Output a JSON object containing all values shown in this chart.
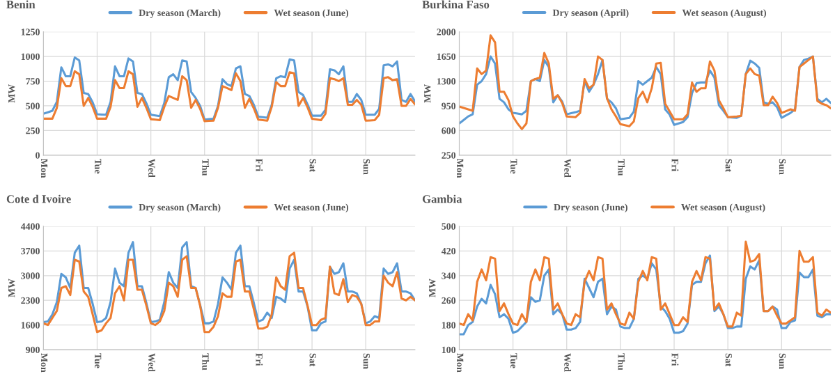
{
  "chart_data": [
    {
      "type": "line",
      "title": "Benin",
      "ylabel": "MW",
      "legend": "top",
      "grid": true,
      "marker": "none",
      "line_style": "solid",
      "categories": [
        "Mon",
        null,
        null,
        null,
        null,
        null,
        null,
        null,
        null,
        null,
        null,
        null,
        "Tue",
        null,
        null,
        null,
        null,
        null,
        null,
        null,
        null,
        null,
        null,
        null,
        "Wed",
        null,
        null,
        null,
        null,
        null,
        null,
        null,
        null,
        null,
        null,
        null,
        "Thu",
        null,
        null,
        null,
        null,
        null,
        null,
        null,
        null,
        null,
        null,
        null,
        "Fri",
        null,
        null,
        null,
        null,
        null,
        null,
        null,
        null,
        null,
        null,
        null,
        "Sat",
        null,
        null,
        null,
        null,
        null,
        null,
        null,
        null,
        null,
        null,
        null,
        "Sun",
        null,
        null,
        null,
        null,
        null,
        null,
        null,
        null,
        null,
        null,
        null
      ],
      "ylim": [
        0,
        1250
      ],
      "yticks": [
        0,
        250,
        500,
        750,
        1000,
        1250
      ],
      "series": [
        {
          "name": "Dry season (March)",
          "color": "#5b9bd5",
          "values": [
            420,
            435,
            450,
            540,
            890,
            800,
            800,
            990,
            960,
            630,
            620,
            535,
            415,
            412,
            410,
            540,
            900,
            800,
            800,
            980,
            950,
            630,
            620,
            525,
            410,
            402,
            395,
            530,
            790,
            820,
            760,
            960,
            950,
            640,
            580,
            500,
            360,
            365,
            370,
            500,
            770,
            720,
            700,
            880,
            900,
            620,
            600,
            510,
            390,
            385,
            380,
            510,
            780,
            800,
            790,
            970,
            960,
            640,
            610,
            515,
            400,
            400,
            400,
            460,
            870,
            860,
            820,
            900,
            540,
            540,
            620,
            560,
            410,
            410,
            410,
            470,
            910,
            920,
            900,
            950,
            560,
            540,
            620,
            545
          ]
        },
        {
          "name": "Wet season (June)",
          "color": "#ed7d31",
          "values": [
            370,
            370,
            370,
            480,
            780,
            700,
            700,
            850,
            820,
            500,
            580,
            490,
            370,
            370,
            370,
            490,
            760,
            680,
            680,
            850,
            820,
            490,
            580,
            480,
            365,
            360,
            355,
            490,
            600,
            580,
            560,
            800,
            760,
            480,
            560,
            470,
            345,
            348,
            350,
            480,
            700,
            680,
            660,
            830,
            750,
            480,
            570,
            475,
            360,
            355,
            350,
            490,
            740,
            700,
            700,
            840,
            830,
            500,
            580,
            485,
            370,
            362,
            355,
            420,
            780,
            770,
            750,
            780,
            510,
            510,
            560,
            510,
            350,
            352,
            355,
            410,
            780,
            790,
            760,
            770,
            500,
            500,
            570,
            515
          ]
        }
      ]
    },
    {
      "type": "line",
      "title": "Burkina Faso",
      "ylabel": "MW",
      "legend": "top",
      "grid": true,
      "marker": "none",
      "line_style": "solid",
      "categories": [
        "Mon",
        null,
        null,
        null,
        null,
        null,
        null,
        null,
        null,
        null,
        null,
        null,
        "Tue",
        null,
        null,
        null,
        null,
        null,
        null,
        null,
        null,
        null,
        null,
        null,
        "Wed",
        null,
        null,
        null,
        null,
        null,
        null,
        null,
        null,
        null,
        null,
        null,
        "Thu",
        null,
        null,
        null,
        null,
        null,
        null,
        null,
        null,
        null,
        null,
        null,
        "Fri",
        null,
        null,
        null,
        null,
        null,
        null,
        null,
        null,
        null,
        null,
        null,
        "Sat",
        null,
        null,
        null,
        null,
        null,
        null,
        null,
        null,
        null,
        null,
        null,
        "Sun",
        null,
        null,
        null,
        null,
        null,
        null,
        null,
        null,
        null,
        null,
        null
      ],
      "ylim": [
        250,
        2000
      ],
      "yticks": [
        250,
        600,
        950,
        1300,
        1650,
        2000
      ],
      "series": [
        {
          "name": "Dry season (April)",
          "color": "#5b9bd5",
          "values": [
            700,
            750,
            800,
            830,
            1250,
            1300,
            1400,
            1650,
            1550,
            1050,
            1000,
            900,
            850,
            840,
            830,
            880,
            1300,
            1330,
            1300,
            1600,
            1500,
            1000,
            1100,
            1010,
            830,
            845,
            860,
            880,
            1300,
            1150,
            1250,
            1400,
            1600,
            1050,
            1000,
            915,
            760,
            770,
            780,
            870,
            1300,
            1250,
            1300,
            1350,
            1500,
            1400,
            900,
            825,
            680,
            700,
            720,
            790,
            1130,
            1270,
            1280,
            1280,
            1450,
            1350,
            960,
            880,
            790,
            785,
            780,
            810,
            1400,
            1590,
            1550,
            1490,
            1000,
            980,
            1000,
            930,
            780,
            815,
            850,
            900,
            1500,
            1600,
            1620,
            1650,
            1050,
            1000,
            1050,
            990
          ]
        },
        {
          "name": "Wet season (August)",
          "color": "#ed7d31",
          "values": [
            940,
            920,
            900,
            880,
            1480,
            1400,
            1450,
            1950,
            1850,
            1150,
            1150,
            1030,
            800,
            700,
            620,
            700,
            1300,
            1330,
            1350,
            1700,
            1550,
            1050,
            1100,
            990,
            800,
            795,
            790,
            850,
            1330,
            1200,
            1250,
            1650,
            1600,
            1060,
            900,
            800,
            690,
            675,
            660,
            730,
            1060,
            1150,
            1000,
            1200,
            1550,
            1560,
            980,
            870,
            760,
            760,
            760,
            830,
            1280,
            1150,
            1200,
            1200,
            1580,
            1450,
            1030,
            915,
            790,
            795,
            800,
            810,
            1400,
            1480,
            1400,
            1380,
            960,
            960,
            1080,
            990,
            850,
            875,
            900,
            880,
            1500,
            1550,
            1600,
            1650,
            1020,
            980,
            960,
            915
          ]
        }
      ]
    },
    {
      "type": "line",
      "title": "Cote d Ivoire",
      "ylabel": "MW",
      "legend": "top",
      "grid": true,
      "marker": "none",
      "line_style": "solid",
      "categories": [
        "Mon",
        null,
        null,
        null,
        null,
        null,
        null,
        null,
        null,
        null,
        null,
        null,
        "Tue",
        null,
        null,
        null,
        null,
        null,
        null,
        null,
        null,
        null,
        null,
        null,
        "Wed",
        null,
        null,
        null,
        null,
        null,
        null,
        null,
        null,
        null,
        null,
        null,
        "Thu",
        null,
        null,
        null,
        null,
        null,
        null,
        null,
        null,
        null,
        null,
        null,
        "Fri",
        null,
        null,
        null,
        null,
        null,
        null,
        null,
        null,
        null,
        null,
        null,
        "Sat",
        null,
        null,
        null,
        null,
        null,
        null,
        null,
        null,
        null,
        null,
        null,
        "Sun",
        null,
        null,
        null,
        null,
        null,
        null,
        null,
        null,
        null,
        null,
        null
      ],
      "ylim": [
        900,
        4400
      ],
      "yticks": [
        900,
        1600,
        2300,
        3000,
        3700,
        4400
      ],
      "series": [
        {
          "name": "Dry season (March)",
          "color": "#5b9bd5",
          "values": [
            1680,
            1700,
            1900,
            2250,
            3050,
            2950,
            2650,
            3650,
            3850,
            2650,
            2650,
            2200,
            1680,
            1700,
            1800,
            2250,
            3200,
            2800,
            2700,
            3650,
            3950,
            2700,
            2700,
            2225,
            1680,
            1700,
            1750,
            2250,
            3100,
            2800,
            2650,
            3800,
            3950,
            2700,
            2650,
            2175,
            1650,
            1650,
            1700,
            2200,
            2950,
            2800,
            2600,
            3650,
            3850,
            2700,
            2700,
            2225,
            1700,
            1750,
            1950,
            1800,
            2400,
            2350,
            2250,
            3200,
            3450,
            2550,
            2550,
            2125,
            1450,
            1450,
            1650,
            1700,
            3250,
            3050,
            3100,
            3350,
            2550,
            2550,
            2500,
            2200,
            1650,
            1700,
            1850,
            1800,
            3200,
            3050,
            3100,
            3350,
            2550,
            2550,
            2500,
            2300
          ]
        },
        {
          "name": "Wet season (June)",
          "color": "#ed7d31",
          "values": [
            1650,
            1600,
            1800,
            2000,
            2650,
            2700,
            2450,
            3450,
            3400,
            2550,
            2400,
            1900,
            1400,
            1450,
            1650,
            1800,
            2500,
            2700,
            2300,
            3450,
            3450,
            2600,
            2600,
            2150,
            1650,
            1600,
            1700,
            2000,
            2800,
            2700,
            2400,
            3450,
            3550,
            2650,
            2650,
            2150,
            1400,
            1400,
            1550,
            1850,
            2500,
            2400,
            2400,
            3400,
            3450,
            2550,
            2550,
            2050,
            1500,
            1500,
            1550,
            1900,
            2950,
            2700,
            2600,
            3550,
            3650,
            2650,
            2650,
            2150,
            1600,
            1600,
            1750,
            1800,
            3250,
            2500,
            2450,
            2900,
            2250,
            2450,
            2400,
            2200,
            1600,
            1600,
            1700,
            1700,
            3000,
            2800,
            2700,
            3100,
            2350,
            2300,
            2400,
            2300
          ]
        }
      ]
    },
    {
      "type": "line",
      "title": "Gambia",
      "ylabel": "MW",
      "legend": "top",
      "grid": true,
      "marker": "none",
      "line_style": "solid",
      "categories": [
        "Mon",
        null,
        null,
        null,
        null,
        null,
        null,
        null,
        null,
        null,
        null,
        null,
        "Tue",
        null,
        null,
        null,
        null,
        null,
        null,
        null,
        null,
        null,
        null,
        null,
        "Wed",
        null,
        null,
        null,
        null,
        null,
        null,
        null,
        null,
        null,
        null,
        null,
        "Thu",
        null,
        null,
        null,
        null,
        null,
        null,
        null,
        null,
        null,
        null,
        null,
        "Fri",
        null,
        null,
        null,
        null,
        null,
        null,
        null,
        null,
        null,
        null,
        null,
        "Sat",
        null,
        null,
        null,
        null,
        null,
        null,
        null,
        null,
        null,
        null,
        null,
        "Sun",
        null,
        null,
        null,
        null,
        null,
        null,
        null,
        null,
        null,
        null,
        null
      ],
      "ylim": [
        100,
        500
      ],
      "yticks": [
        100,
        180,
        260,
        340,
        420,
        500
      ],
      "series": [
        {
          "name": "Dry season (June)",
          "color": "#5b9bd5",
          "values": [
            150,
            150,
            180,
            190,
            240,
            265,
            250,
            310,
            280,
            205,
            215,
            200,
            155,
            160,
            175,
            190,
            270,
            255,
            260,
            340,
            360,
            215,
            230,
            215,
            165,
            165,
            170,
            190,
            330,
            300,
            270,
            320,
            330,
            215,
            240,
            230,
            175,
            170,
            170,
            200,
            330,
            340,
            330,
            380,
            360,
            240,
            225,
            200,
            155,
            155,
            160,
            185,
            310,
            320,
            320,
            380,
            405,
            225,
            240,
            215,
            170,
            170,
            175,
            175,
            330,
            370,
            360,
            390,
            225,
            225,
            240,
            230,
            170,
            170,
            190,
            195,
            350,
            335,
            335,
            360,
            210,
            205,
            215,
            215
          ]
        },
        {
          "name": "Wet season (August)",
          "color": "#ed7d31",
          "values": [
            185,
            180,
            215,
            195,
            320,
            360,
            325,
            400,
            395,
            225,
            250,
            215,
            185,
            180,
            215,
            190,
            320,
            360,
            325,
            400,
            395,
            230,
            250,
            215,
            185,
            180,
            215,
            205,
            320,
            355,
            325,
            400,
            395,
            230,
            250,
            215,
            185,
            180,
            220,
            200,
            320,
            355,
            325,
            400,
            395,
            230,
            250,
            215,
            180,
            180,
            205,
            190,
            320,
            355,
            325,
            400,
            395,
            230,
            250,
            215,
            175,
            175,
            220,
            210,
            450,
            385,
            390,
            410,
            225,
            225,
            240,
            210,
            185,
            185,
            195,
            205,
            420,
            385,
            385,
            400,
            220,
            210,
            230,
            220
          ]
        }
      ]
    }
  ]
}
